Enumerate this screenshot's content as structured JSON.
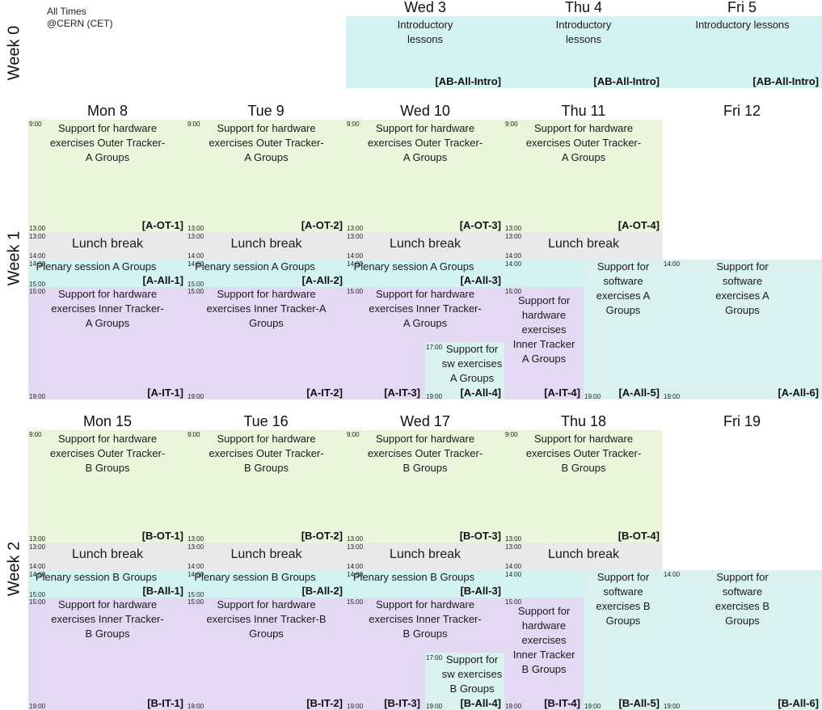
{
  "timezone": {
    "line1": "All Times",
    "line2": "@CERN (CET)"
  },
  "weeks": [
    "Week 0",
    "Week 1",
    "Week 2"
  ],
  "week0": {
    "days": [
      "Wed 3",
      "Thu 4",
      "Fri 5"
    ],
    "intro_text": "Introductory lessons",
    "intro_code": "[AB-All-Intro]"
  },
  "week1": {
    "days": [
      "Mon 8",
      "Tue 9",
      "Wed 10",
      "Thu 11",
      "Fri 12"
    ],
    "outer": {
      "text": "Support for hardware exercises Outer Tracker-A Groups",
      "codes": [
        "[A-OT-1]",
        "[A-OT-2]",
        "[A-OT-3]",
        "[A-OT-4]"
      ]
    },
    "lunch": "Lunch break",
    "plenary": {
      "text": "Plenary session A Groups",
      "codes": [
        "[A-All-1]",
        "[A-All-2]",
        "[A-All-3]"
      ]
    },
    "inner": {
      "text": "Support for hardware exercises Inner Tracker-A Groups",
      "codes": [
        "[A-IT-1]",
        "[A-IT-2]",
        "[A-IT-3]"
      ]
    },
    "thu_inner": {
      "text": "Support for hardware exercises Inner Tracker A Groups",
      "code": "[A-IT-4]"
    },
    "sw_small": {
      "text": "Support for sw exercises A Groups",
      "code": "[A-All-4]"
    },
    "sw_thu": {
      "text": "Support for software exercises A Groups",
      "code": "[A-All-5]"
    },
    "sw_fri": {
      "text": "Support for software exercises A Groups",
      "code": "[A-All-6]"
    }
  },
  "week2": {
    "days": [
      "Mon 15",
      "Tue 16",
      "Wed 17",
      "Thu 18",
      "Fri 19"
    ],
    "outer": {
      "text": "Support for hardware exercises Outer Tracker-B Groups",
      "codes": [
        "[B-OT-1]",
        "[B-OT-2]",
        "[B-OT-3]",
        "[B-OT-4]"
      ]
    },
    "lunch": "Lunch break",
    "plenary": {
      "text": "Plenary session B Groups",
      "codes": [
        "[B-All-1]",
        "[B-All-2]",
        "[B-All-3]"
      ]
    },
    "inner": {
      "text": "Support for hardware exercises Inner Tracker-B Groups",
      "codes": [
        "[B-IT-1]",
        "[B-IT-2]",
        "[B-IT-3]"
      ]
    },
    "thu_inner": {
      "text": "Support for hardware exercises Inner Tracker B Groups",
      "code": "[B-IT-4]"
    },
    "sw_small": {
      "text": "Support for sw exercises B Groups",
      "code": "[B-All-4]"
    },
    "sw_thu": {
      "text": "Support for software exercises B Groups",
      "code": "[B-All-5]"
    },
    "sw_fri": {
      "text": "Support for software exercises B Groups",
      "code": "[B-All-6]"
    }
  },
  "times": {
    "t900": "9:00",
    "t1300": "13:00",
    "t1400": "14:00",
    "t1500": "15:00",
    "t1700": "17:00",
    "t1900": "19:00"
  },
  "colors": {
    "outer": "#eaf5db",
    "lunch": "#e9e9e9",
    "plenary": "#d3f3f2",
    "inner": "#e4d9f3",
    "software": "#d9f1ef"
  }
}
